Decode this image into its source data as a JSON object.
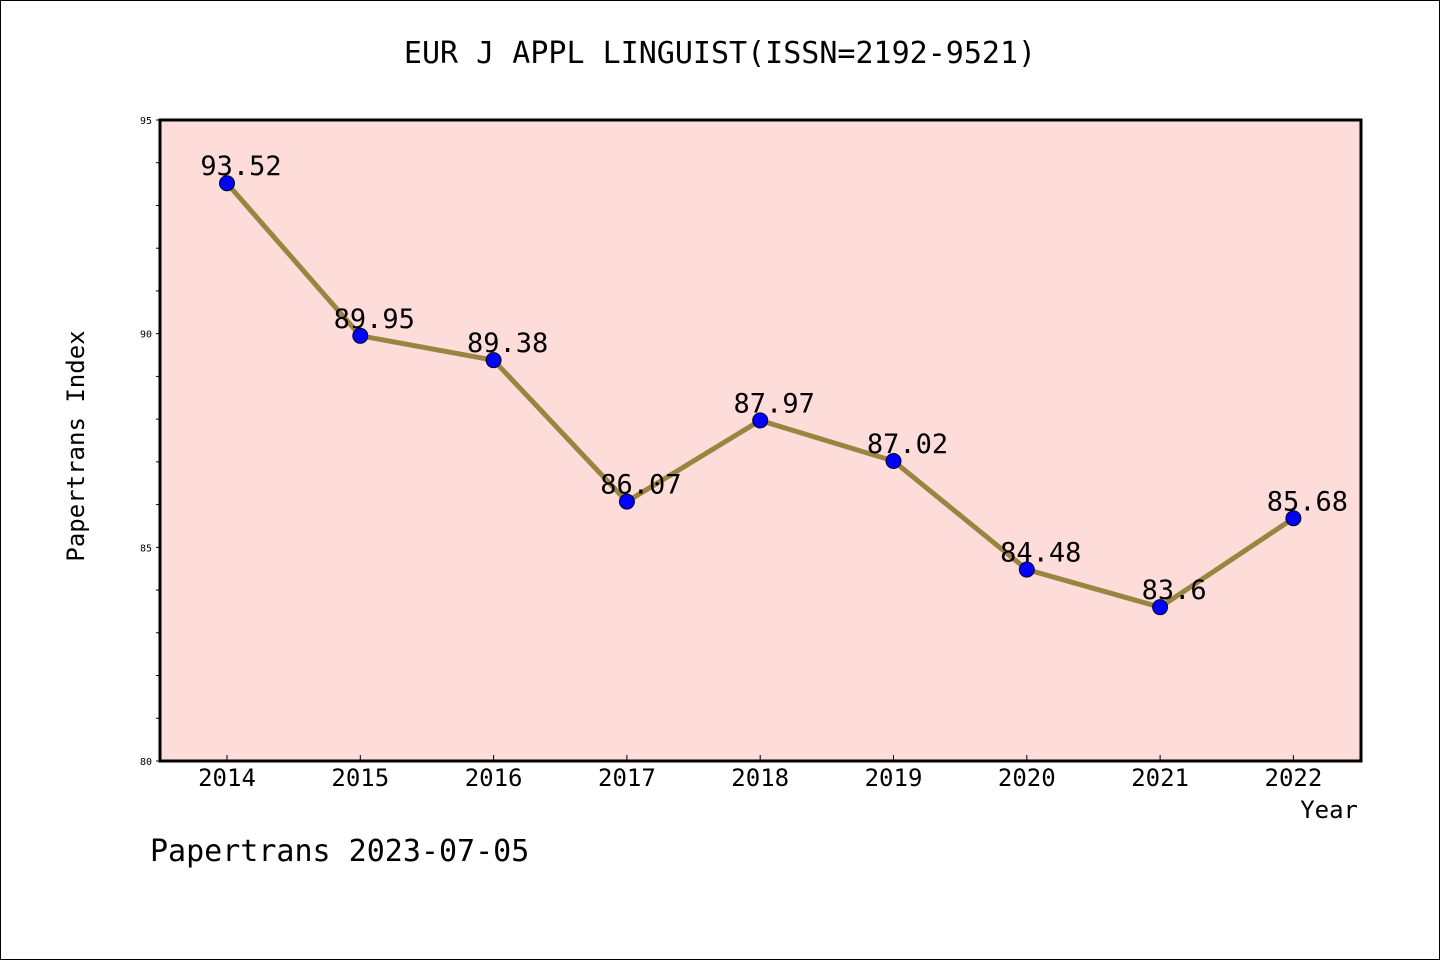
{
  "chart_data": {
    "type": "line",
    "title": "EUR J APPL LINGUIST(ISSN=2192-9521)",
    "xlabel": "Year",
    "ylabel": "Papertrans Index",
    "categories": [
      "2014",
      "2015",
      "2016",
      "2017",
      "2018",
      "2019",
      "2020",
      "2021",
      "2022"
    ],
    "values": [
      93.52,
      89.95,
      89.38,
      86.07,
      87.97,
      87.02,
      84.48,
      83.6,
      85.68
    ],
    "value_labels": [
      "93.52",
      "89.95",
      "89.38",
      "86.07",
      "87.97",
      "87.02",
      "84.48",
      "83.6",
      "85.68"
    ],
    "ylim": [
      80,
      95
    ],
    "yticks": [
      "80",
      "85",
      "90",
      "95"
    ],
    "grid": false,
    "colors": {
      "plot_background": "#FDDCDA",
      "line": "#9A8540",
      "marker": "#0000FF"
    }
  },
  "footer": {
    "text": "Papertrans 2023-07-05"
  }
}
